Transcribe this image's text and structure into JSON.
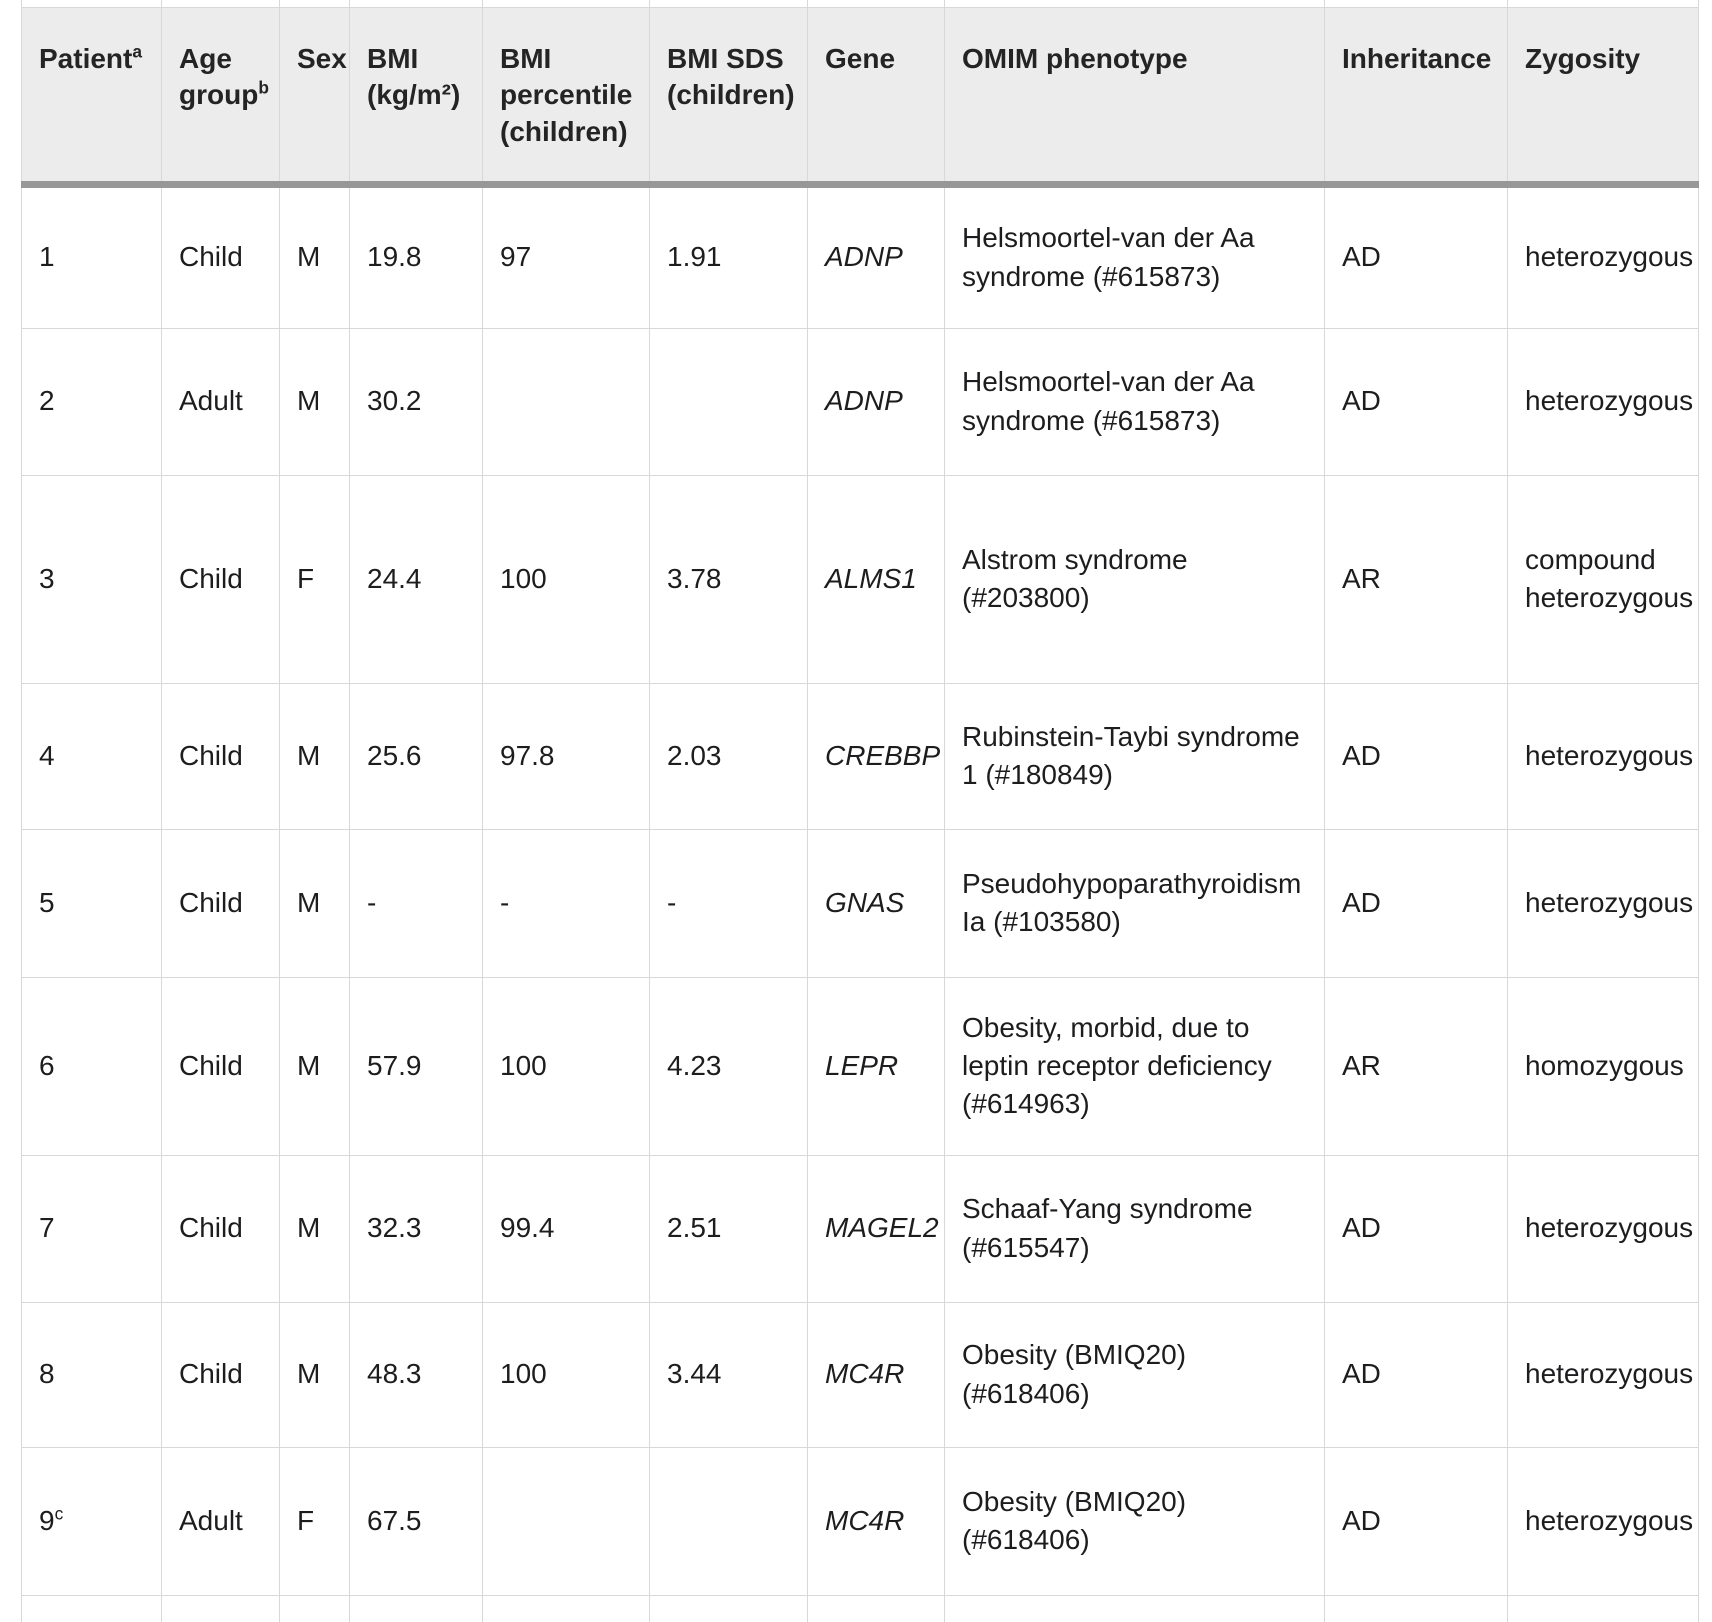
{
  "table": {
    "columns": [
      {
        "label": "Patient",
        "sup": "a"
      },
      {
        "label": "Age group",
        "sup": "b"
      },
      {
        "label": "Sex"
      },
      {
        "label": "BMI (kg/m²)"
      },
      {
        "label": "BMI percentile (children)"
      },
      {
        "label": "BMI SDS (children)"
      },
      {
        "label": "Gene"
      },
      {
        "label": "OMIM phenotype"
      },
      {
        "label": "Inheritance"
      },
      {
        "label": "Zygosity"
      }
    ],
    "rows": [
      {
        "patient": "1",
        "age_group": "Child",
        "sex": "M",
        "bmi": "19.8",
        "bmi_percentile": "97",
        "bmi_sds": "1.91",
        "gene": "ADNP",
        "omim_phenotype": "Helsmoortel-van der Aa syndrome (#615873)",
        "inheritance": "AD",
        "zygosity": "heterozygous"
      },
      {
        "patient": "2",
        "age_group": "Adult",
        "sex": "M",
        "bmi": "30.2",
        "bmi_percentile": "",
        "bmi_sds": "",
        "gene": "ADNP",
        "omim_phenotype": "Helsmoortel-van der Aa syndrome (#615873)",
        "inheritance": "AD",
        "zygosity": "heterozygous"
      },
      {
        "patient": "3",
        "age_group": "Child",
        "sex": "F",
        "bmi": "24.4",
        "bmi_percentile": "100",
        "bmi_sds": "3.78",
        "gene": "ALMS1",
        "omim_phenotype": "Alstrom syndrome (#203800)",
        "inheritance": "AR",
        "zygosity": "compound heterozygous"
      },
      {
        "patient": "4",
        "age_group": "Child",
        "sex": "M",
        "bmi": "25.6",
        "bmi_percentile": "97.8",
        "bmi_sds": "2.03",
        "gene": "CREBBP",
        "omim_phenotype": "Rubinstein-Taybi syndrome 1 (#180849)",
        "inheritance": "AD",
        "zygosity": "heterozygous"
      },
      {
        "patient": "5",
        "age_group": "Child",
        "sex": "M",
        "bmi": "-",
        "bmi_percentile": "-",
        "bmi_sds": "-",
        "gene": "GNAS",
        "omim_phenotype": "Pseudohypoparathyroidism Ia (#103580)",
        "inheritance": "AD",
        "zygosity": "heterozygous"
      },
      {
        "patient": "6",
        "age_group": "Child",
        "sex": "M",
        "bmi": "57.9",
        "bmi_percentile": "100",
        "bmi_sds": "4.23",
        "gene": "LEPR",
        "omim_phenotype": "Obesity, morbid, due to leptin receptor deficiency (#614963)",
        "inheritance": "AR",
        "zygosity": "homozygous"
      },
      {
        "patient": "7",
        "age_group": "Child",
        "sex": "M",
        "bmi": "32.3",
        "bmi_percentile": "99.4",
        "bmi_sds": "2.51",
        "gene": "MAGEL2",
        "omim_phenotype": "Schaaf-Yang syndrome (#615547)",
        "inheritance": "AD",
        "zygosity": "heterozygous"
      },
      {
        "patient": "8",
        "age_group": "Child",
        "sex": "M",
        "bmi": "48.3",
        "bmi_percentile": "100",
        "bmi_sds": "3.44",
        "gene": "MC4R",
        "omim_phenotype": "Obesity (BMIQ20) (#618406)",
        "inheritance": "AD",
        "zygosity": "heterozygous"
      },
      {
        "patient": "9",
        "patient_sup": "c",
        "age_group": "Adult",
        "sex": "F",
        "bmi": "67.5",
        "bmi_percentile": "",
        "bmi_sds": "",
        "gene": "MC4R",
        "omim_phenotype": "Obesity (BMIQ20) (#618406)",
        "inheritance": "AD",
        "zygosity": "heterozygous"
      }
    ]
  },
  "colors": {
    "header_background": "#ececec",
    "header_separator_bar": "#979797",
    "cell_border": "#d8d8d8",
    "text": "#1d1d1f",
    "row_background": "#ffffff"
  }
}
